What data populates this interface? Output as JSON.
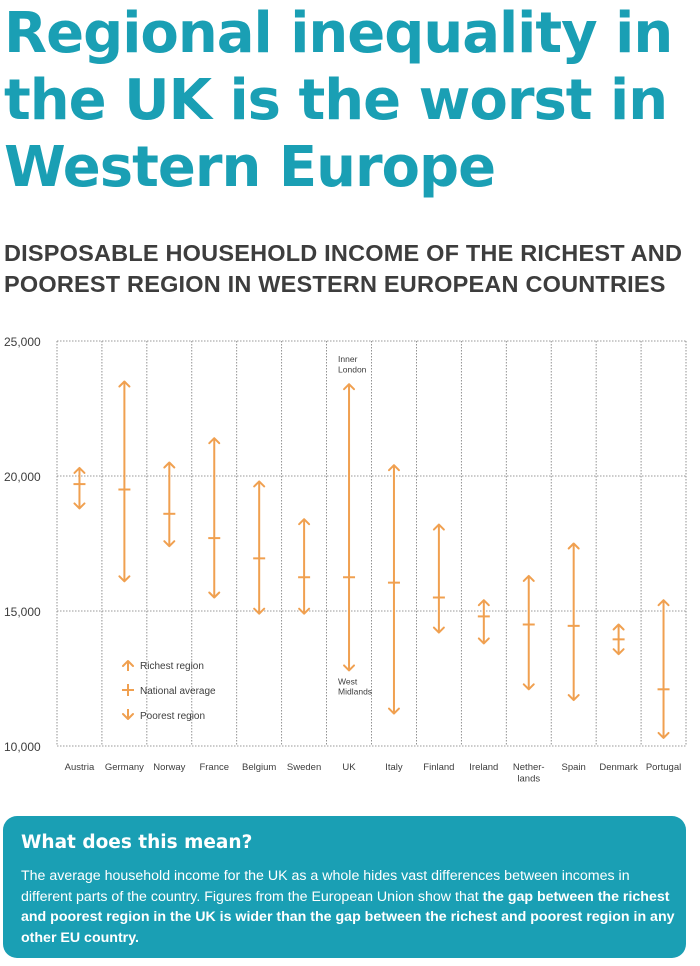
{
  "headline": "Regional inequality in the UK is the worst in Western Europe",
  "subtitle": "DISPOSABLE HOUSEHOLD INCOME OF THE RICHEST AND POOREST REGION IN WESTERN EUROPEAN COUNTRIES",
  "colors": {
    "accent": "#1a9fb4",
    "marker": "#f0a050",
    "text": "#3d3d3d"
  },
  "chart_data": {
    "type": "range",
    "ylim": [
      10000,
      25000
    ],
    "yticks": [
      10000,
      15000,
      20000,
      25000
    ],
    "ytick_labels": [
      "10,000",
      "15,000",
      "20,000",
      "25,000"
    ],
    "grid": true,
    "categories": [
      "Austria",
      "Germany",
      "Norway",
      "France",
      "Belgium",
      "Sweden",
      "UK",
      "Italy",
      "Finland",
      "Ireland",
      "Nether-\nlands",
      "Spain",
      "Denmark",
      "Portugal"
    ],
    "series": [
      {
        "name": "Richest region",
        "values": [
          20300,
          23500,
          20500,
          21400,
          19800,
          18400,
          23400,
          20400,
          18200,
          15400,
          16300,
          17500,
          14500,
          15400
        ]
      },
      {
        "name": "National average",
        "values": [
          19700,
          19500,
          18600,
          17700,
          16950,
          16250,
          16250,
          16050,
          15500,
          14800,
          14500,
          14450,
          13950,
          12100
        ]
      },
      {
        "name": "Poorest region",
        "values": [
          18800,
          16100,
          17400,
          15500,
          14900,
          14900,
          12800,
          11200,
          14200,
          13800,
          12100,
          11700,
          13400,
          10300
        ]
      }
    ],
    "annotations": [
      {
        "category": "UK",
        "series": "Richest region",
        "text": "Inner\nLondon"
      },
      {
        "category": "UK",
        "series": "Poorest region",
        "text": "West\nMidlands"
      }
    ],
    "legend": {
      "position": "bottom-left",
      "entries": [
        "Richest region",
        "National average",
        "Poorest region"
      ]
    }
  },
  "info_box": {
    "title": "What does this mean?",
    "text_plain": "The average household income for the UK as a whole hides vast differences between incomes in different parts of the country. Figures from the European Union show that ",
    "text_bold": "the gap between the richest and poorest region in the UK is wider than the gap between the richest and poorest region in any other EU country."
  }
}
